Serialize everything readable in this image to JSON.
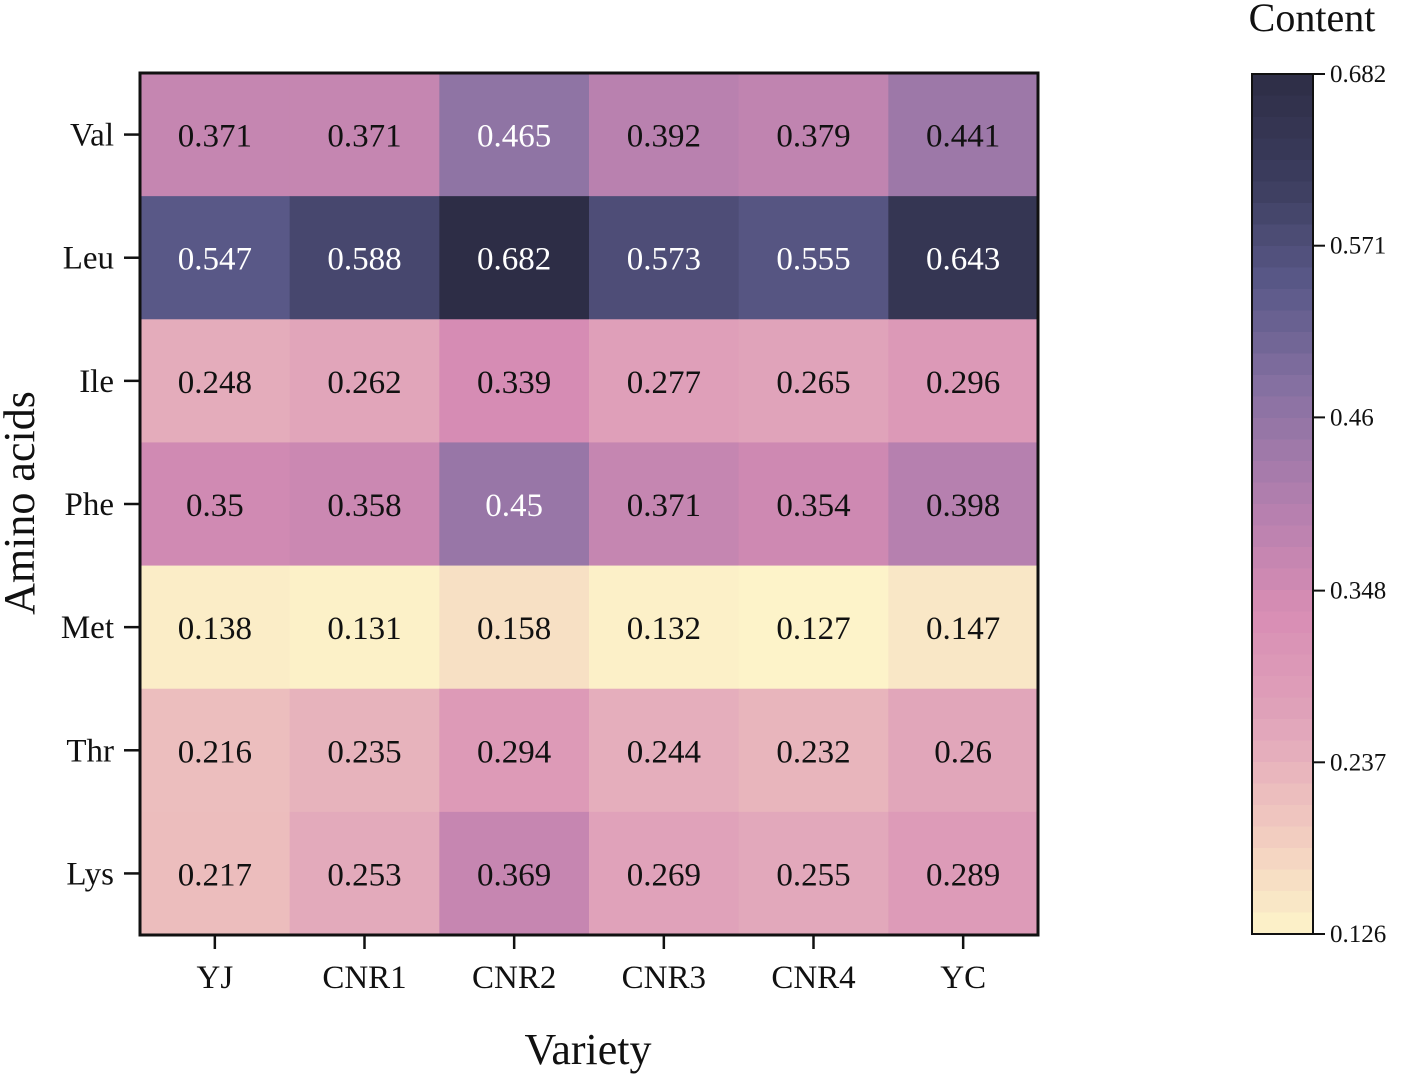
{
  "chart_data": {
    "type": "heatmap",
    "title": "",
    "xlabel": "Variety",
    "ylabel": "Amino acids",
    "x_categories": [
      "YJ",
      "CNR1",
      "CNR2",
      "CNR3",
      "CNR4",
      "YC"
    ],
    "y_categories": [
      "Val",
      "Leu",
      "Ile",
      "Phe",
      "Met",
      "Thr",
      "Lys"
    ],
    "values": [
      [
        0.371,
        0.371,
        0.465,
        0.392,
        0.379,
        0.441
      ],
      [
        0.547,
        0.588,
        0.682,
        0.573,
        0.555,
        0.643
      ],
      [
        0.248,
        0.262,
        0.339,
        0.277,
        0.265,
        0.296
      ],
      [
        0.35,
        0.358,
        0.45,
        0.371,
        0.354,
        0.398
      ],
      [
        0.138,
        0.131,
        0.158,
        0.132,
        0.127,
        0.147
      ],
      [
        0.216,
        0.235,
        0.294,
        0.244,
        0.232,
        0.26
      ],
      [
        0.217,
        0.253,
        0.369,
        0.269,
        0.255,
        0.289
      ]
    ],
    "colorbar": {
      "title": "Content",
      "min": 0.126,
      "max": 0.682,
      "ticks": [
        "0.682",
        "0.571",
        "0.46",
        "0.348",
        "0.237",
        "0.126"
      ],
      "colors": [
        "#fdf4c9",
        "#f1c9bf",
        "#e0a3ba",
        "#d88db4",
        "#b37fae",
        "#8a72a3",
        "#5b5a8a",
        "#3c3d5e",
        "#2d2d46"
      ]
    },
    "grid": false,
    "legend": "colorbar-right"
  }
}
